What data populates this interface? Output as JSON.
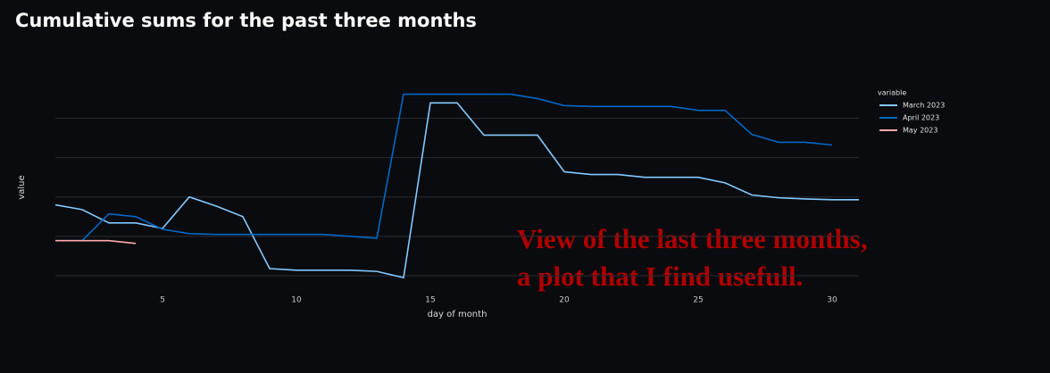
{
  "chart_data": {
    "type": "line",
    "title": "Cumulative sums for the past three months",
    "x_label": "day of month",
    "y_label": "value",
    "legend_title": "variable",
    "xlim": [
      1,
      31
    ],
    "xticks": [
      5,
      10,
      15,
      20,
      25,
      30
    ],
    "ylim": [
      0.75,
      5.85
    ],
    "yticks": [
      1,
      2,
      3,
      4,
      5
    ],
    "grid": true,
    "legend_position": "top-right",
    "x": [
      1,
      2,
      3,
      4,
      5,
      6,
      7,
      8,
      9,
      10,
      11,
      12,
      13,
      14,
      15,
      16,
      17,
      18,
      19,
      20,
      21,
      22,
      23,
      24,
      25,
      26,
      27,
      28,
      29,
      30,
      31
    ],
    "series": [
      {
        "name": "March 2023",
        "color": "#83c9ff",
        "values": [
          2.8,
          2.68,
          2.34,
          2.34,
          2.2,
          3.0,
          2.77,
          2.5,
          1.18,
          1.14,
          1.14,
          1.14,
          1.11,
          0.95,
          5.39,
          5.39,
          4.57,
          4.57,
          4.57,
          3.64,
          3.57,
          3.57,
          3.5,
          3.5,
          3.5,
          3.36,
          3.05,
          2.98,
          2.95,
          2.93,
          2.93
        ]
      },
      {
        "name": "April 2023",
        "color": "#0068c9",
        "values": [
          1.89,
          1.89,
          2.57,
          2.5,
          2.18,
          2.07,
          2.05,
          2.05,
          2.05,
          2.05,
          2.05,
          2.0,
          1.95,
          5.61,
          5.61,
          5.61,
          5.61,
          5.61,
          5.5,
          5.32,
          5.3,
          5.3,
          5.3,
          5.3,
          5.2,
          5.2,
          4.59,
          4.39,
          4.39,
          4.32,
          null
        ]
      },
      {
        "name": "May 2023",
        "color": "#ffabab",
        "values": [
          1.89,
          1.89,
          1.89,
          1.82,
          null,
          null,
          null,
          null,
          null,
          null,
          null,
          null,
          null,
          null,
          null,
          null,
          null,
          null,
          null,
          null,
          null,
          null,
          null,
          null,
          null,
          null,
          null,
          null,
          null,
          null,
          null
        ]
      }
    ],
    "annotation": [
      "View of the last three months,",
      "a plot that I find usefull."
    ]
  }
}
